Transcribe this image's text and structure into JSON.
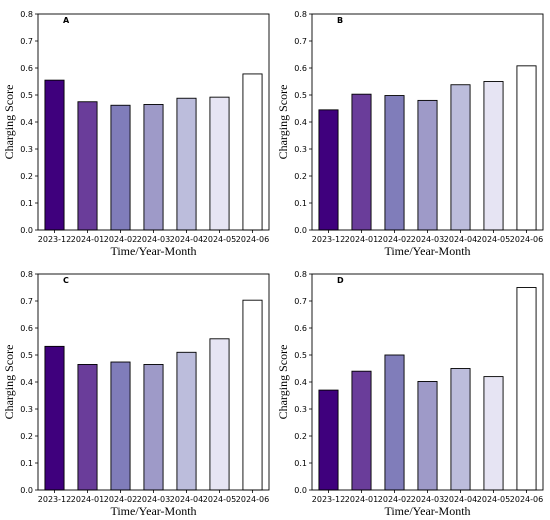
{
  "chart_data": [
    {
      "type": "bar",
      "panel": "A",
      "categories": [
        "2023-12",
        "2024-01",
        "2024-02",
        "2024-03",
        "2024-04",
        "2024-05",
        "2024-06"
      ],
      "values": [
        0.555,
        0.475,
        0.462,
        0.465,
        0.488,
        0.492,
        0.578
      ],
      "xlabel": "Time/Year-Month",
      "ylabel": "Charging Score",
      "ylim": [
        0,
        0.8
      ],
      "yticks": [
        "0.0",
        "0.1",
        "0.2",
        "0.3",
        "0.4",
        "0.5",
        "0.6",
        "0.7",
        "0.8"
      ],
      "colors": [
        "#3f007d",
        "#6a3d9a",
        "#807dba",
        "#9e9ac8",
        "#bcbddc",
        "#e6e4f3",
        "#ffffff"
      ],
      "grid": false
    },
    {
      "type": "bar",
      "panel": "B",
      "categories": [
        "2023-12",
        "2024-01",
        "2024-02",
        "2024-03",
        "2024-04",
        "2024-05",
        "2024-06"
      ],
      "values": [
        0.445,
        0.503,
        0.498,
        0.48,
        0.538,
        0.55,
        0.608
      ],
      "xlabel": "Time/Year-Month",
      "ylabel": "Charging Score",
      "ylim": [
        0,
        0.8
      ],
      "yticks": [
        "0.0",
        "0.1",
        "0.2",
        "0.3",
        "0.4",
        "0.5",
        "0.6",
        "0.7",
        "0.8"
      ],
      "colors": [
        "#3f007d",
        "#6a3d9a",
        "#807dba",
        "#9e9ac8",
        "#bcbddc",
        "#e6e4f3",
        "#ffffff"
      ],
      "grid": false
    },
    {
      "type": "bar",
      "panel": "C",
      "categories": [
        "2023-12",
        "2024-01",
        "2024-02",
        "2024-03",
        "2024-04",
        "2024-05",
        "2024-06"
      ],
      "values": [
        0.532,
        0.465,
        0.474,
        0.465,
        0.51,
        0.56,
        0.703
      ],
      "xlabel": "Time/Year-Month",
      "ylabel": "Charging Score",
      "ylim": [
        0,
        0.8
      ],
      "yticks": [
        "0.0",
        "0.1",
        "0.2",
        "0.3",
        "0.4",
        "0.5",
        "0.6",
        "0.7",
        "0.8"
      ],
      "colors": [
        "#3f007d",
        "#6a3d9a",
        "#807dba",
        "#9e9ac8",
        "#bcbddc",
        "#e6e4f3",
        "#ffffff"
      ],
      "grid": false
    },
    {
      "type": "bar",
      "panel": "D",
      "categories": [
        "2023-12",
        "2024-01",
        "2024-02",
        "2024-03",
        "2024-04",
        "2024-05",
        "2024-06"
      ],
      "values": [
        0.37,
        0.44,
        0.5,
        0.402,
        0.45,
        0.42,
        0.75
      ],
      "xlabel": "Time/Year-Month",
      "ylabel": "Charging Score",
      "ylim": [
        0,
        0.8
      ],
      "yticks": [
        "0.0",
        "0.1",
        "0.2",
        "0.3",
        "0.4",
        "0.5",
        "0.6",
        "0.7",
        "0.8"
      ],
      "colors": [
        "#3f007d",
        "#6a3d9a",
        "#807dba",
        "#9e9ac8",
        "#bcbddc",
        "#e6e4f3",
        "#ffffff"
      ],
      "grid": false
    }
  ]
}
